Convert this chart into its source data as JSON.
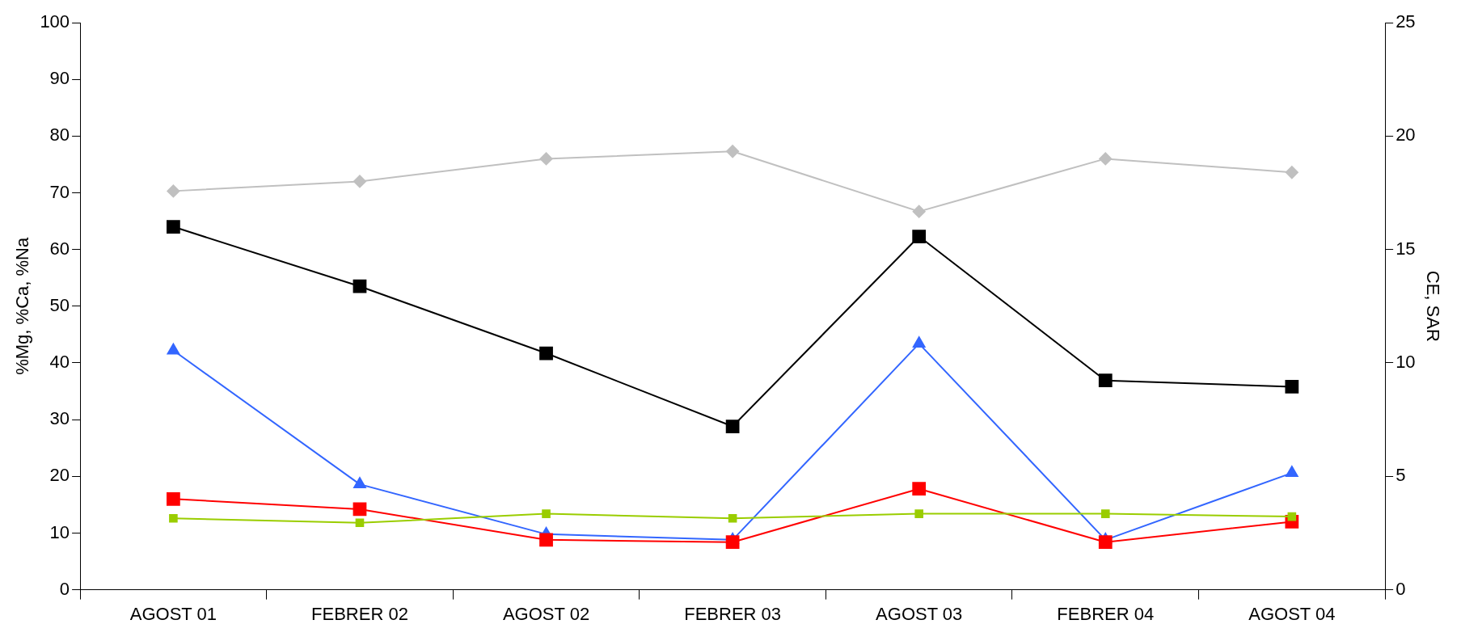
{
  "chart_data": {
    "type": "line",
    "ylabel": "%Mg, %Ca, %Na",
    "y2label": "CE, SAR",
    "categories": [
      "AGOST 01",
      "FEBRER 02",
      "AGOST 02",
      "FEBRER 03",
      "AGOST 03",
      "FEBRER 04",
      "AGOST 04"
    ],
    "series": [
      {
        "color": "#c0c0c0",
        "marker": "diamond",
        "values": [
          70.3,
          72,
          76,
          77.3,
          66.7,
          76,
          73.6
        ]
      },
      {
        "color": "#000000",
        "marker": "square",
        "values": [
          64,
          53.5,
          41.7,
          28.8,
          62.3,
          36.9,
          35.8
        ]
      },
      {
        "color": "#9acd00",
        "marker": "square",
        "values": [
          12.6,
          11.8,
          13.4,
          12.6,
          13.4,
          13.4,
          12.9
        ]
      },
      {
        "color": "#ff0000",
        "marker": "square",
        "axis": "y2",
        "values": [
          4,
          3.55,
          2.2,
          2.1,
          4.45,
          2.1,
          3
        ]
      },
      {
        "color": "#3366ff",
        "marker": "triangle",
        "axis": "y2",
        "values": [
          10.55,
          4.65,
          2.45,
          2.2,
          10.85,
          2.2,
          5.15
        ]
      }
    ],
    "ylim": [
      0,
      100
    ],
    "yticks": [
      0,
      10,
      20,
      30,
      40,
      50,
      60,
      70,
      80,
      90,
      100
    ],
    "y2lim": [
      0,
      25
    ],
    "y2ticks": [
      0,
      5,
      10,
      15,
      20,
      25
    ],
    "grid": false,
    "legend": false,
    "line_style": "solid"
  }
}
